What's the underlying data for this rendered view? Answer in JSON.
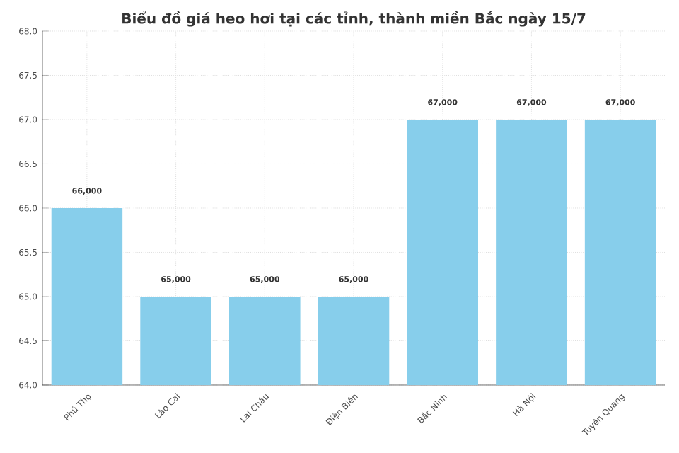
{
  "chart_data": {
    "type": "bar",
    "title": "Biểu đồ giá heo hơi tại các tỉnh, thành miền Bắc ngày 15/7",
    "categories": [
      "Phú Thọ",
      "Lào Cai",
      "Lai Châu",
      "Điện Biên",
      "Bắc Ninh",
      "Hà Nội",
      "Tuyên Quang"
    ],
    "values": [
      66,
      65,
      65,
      65,
      67,
      67,
      67
    ],
    "annotations": [
      {
        "text": "66,000",
        "x": "Phú Thọ",
        "y": 66
      },
      {
        "text": "65,000",
        "x": "Lào Cai",
        "y": 65
      },
      {
        "text": "65,000",
        "x": "Lai Châu",
        "y": 65
      },
      {
        "text": "65,000",
        "x": "Điện Biên",
        "y": 65
      },
      {
        "text": "67,000",
        "x": "Bắc Ninh",
        "y": 67
      },
      {
        "text": "67,000",
        "x": "Hà Nội",
        "y": 67
      },
      {
        "text": "67,000",
        "x": "Tuyên Quang",
        "y": 67
      }
    ],
    "color": "#87ceeb",
    "ylim": [
      64,
      68
    ],
    "yticks": [
      {
        "value": 64,
        "label": "64.0"
      },
      {
        "value": 64.5,
        "label": "64.5"
      },
      {
        "value": 65,
        "label": "65.0"
      },
      {
        "value": 65.5,
        "label": "65.5"
      },
      {
        "value": 66,
        "label": "66.0"
      },
      {
        "value": 66.5,
        "label": "66.5"
      },
      {
        "value": 67,
        "label": "67.0"
      },
      {
        "value": 67.5,
        "label": "67.5"
      },
      {
        "value": 68,
        "label": "68.0"
      }
    ],
    "grid": true
  }
}
